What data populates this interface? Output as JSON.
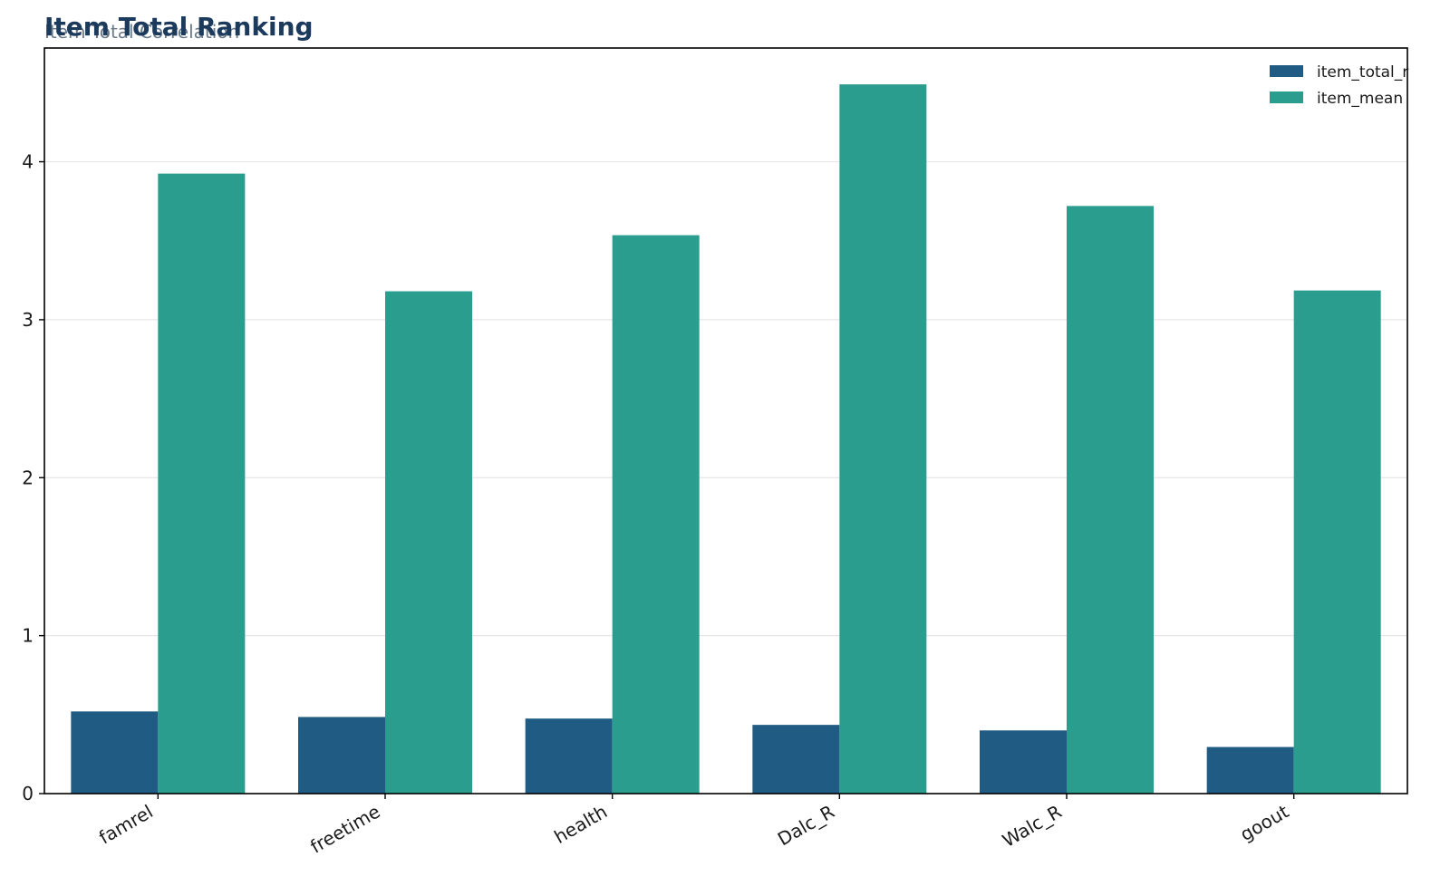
{
  "chart_data": {
    "type": "bar",
    "title": "Item Total Ranking",
    "subtitle": "Item Total Correlation",
    "xlabel": "",
    "ylabel": "",
    "categories": [
      "famrel",
      "freetime",
      "health",
      "Dalc_R",
      "Walc_R",
      "goout"
    ],
    "series": [
      {
        "name": "item_total_r",
        "color": "#1f5b83",
        "values": [
          0.52,
          0.485,
          0.475,
          0.435,
          0.4,
          0.295
        ]
      },
      {
        "name": "item_mean",
        "color": "#2a9d8f",
        "values": [
          3.925,
          3.18,
          3.535,
          4.49,
          3.72,
          3.185
        ]
      }
    ],
    "ylim": [
      0,
      4.72
    ],
    "yticks": [
      0,
      1,
      2,
      3,
      4
    ],
    "grid": "horizontal",
    "legend_position": "top-right",
    "colors": {
      "title": "#1b3a5c",
      "subtitle": "#6a7a88",
      "grid": "#e6e6e6",
      "axis": "#000000"
    }
  }
}
